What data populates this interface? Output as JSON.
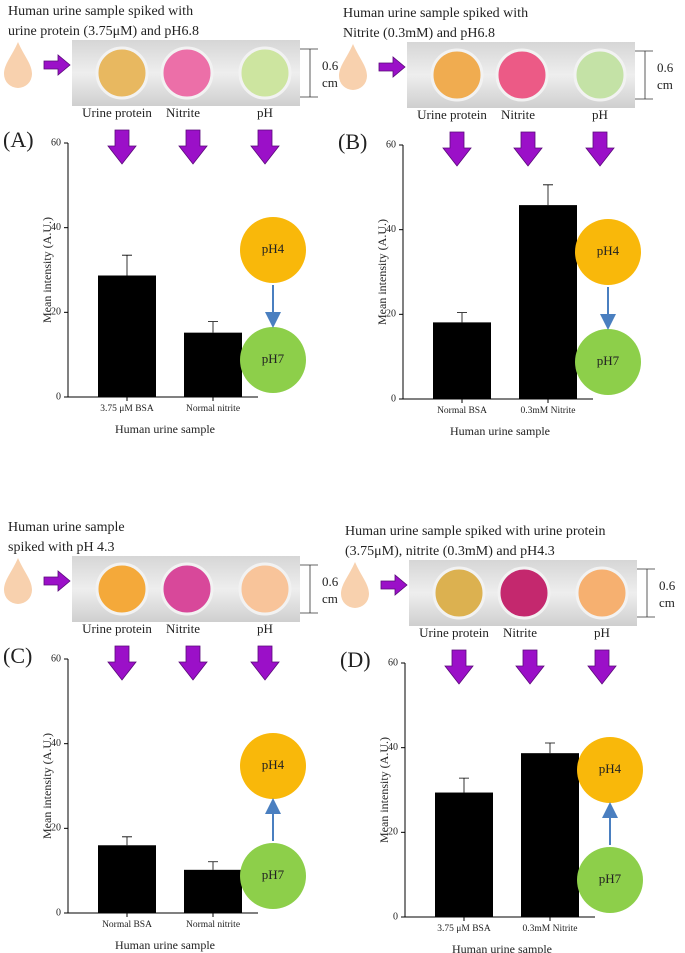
{
  "chart_data": [
    {
      "type": "bar",
      "panel_label": "(A)",
      "title": [
        "Human urine sample spiked with",
        "urine protein  (3.75μM) and pH6.8"
      ],
      "strip_labels": [
        "Urine protein",
        "Nitrite",
        "pH"
      ],
      "spot_colors": [
        "#e8b860",
        "#ec6fa8",
        "#cde5a0"
      ],
      "scale_label": [
        "0.6",
        "cm"
      ],
      "y_label": "Mean intensity (A.U.)",
      "x_label": "Human urine sample",
      "categories": [
        "3.75 μM BSA",
        "Normal nitrite"
      ],
      "values": [
        28.7,
        15.2
      ],
      "errors": [
        4.8,
        2.6
      ],
      "color": "#000000",
      "ylim": [
        0,
        60
      ],
      "yticks": [
        0,
        20,
        40,
        60
      ],
      "ph_labels": [
        "pH4",
        "pH7"
      ],
      "ph_arrow": "down"
    },
    {
      "type": "bar",
      "panel_label": "(B)",
      "title": [
        "Human urine sample spiked with",
        "Nitrite (0.3mM) and pH6.8"
      ],
      "strip_labels": [
        "Urine protein",
        "Nitrite",
        "pH"
      ],
      "spot_colors": [
        "#f0ac50",
        "#ec5a86",
        "#c4e2a6"
      ],
      "scale_label": [
        "0.6",
        "cm"
      ],
      "y_label": "Mean intensity (A.U.)",
      "x_label": "Human urine sample",
      "categories": [
        "Normal BSA",
        "0.3mM Nitrite"
      ],
      "values": [
        18.1,
        45.8
      ],
      "errors": [
        2.3,
        4.8
      ],
      "color": "#000000",
      "ylim": [
        0,
        60
      ],
      "yticks": [
        0,
        20,
        40,
        60
      ],
      "ph_labels": [
        "pH4",
        "pH7"
      ],
      "ph_arrow": "down"
    },
    {
      "type": "bar",
      "panel_label": "(C)",
      "title": [
        "Human urine sample",
        "spiked with pH 4.3"
      ],
      "strip_labels": [
        "Urine protein",
        "Nitrite",
        "pH"
      ],
      "spot_colors": [
        "#f4a93a",
        "#d8489a",
        "#f8c49a"
      ],
      "scale_label": [
        "0.6",
        "cm"
      ],
      "y_label": "Mean intensity (A.U.)",
      "x_label": "Human urine sample",
      "categories": [
        "Normal BSA",
        "Normal nitrite"
      ],
      "values": [
        16,
        10.2
      ],
      "errors": [
        2,
        1.9
      ],
      "color": "#000000",
      "ylim": [
        0,
        60
      ],
      "yticks": [
        0,
        20,
        40,
        60
      ],
      "ph_labels": [
        "pH4",
        "pH7"
      ],
      "ph_arrow": "up"
    },
    {
      "type": "bar",
      "panel_label": "(D)",
      "title": [
        "Human urine sample spiked with urine protein",
        "(3.75μM), nitrite (0.3mM) and pH4.3"
      ],
      "strip_labels": [
        "Urine protein",
        "Nitrite",
        "pH"
      ],
      "spot_colors": [
        "#dcb150",
        "#c4286e",
        "#f6b070"
      ],
      "scale_label": [
        "0.6",
        "cm"
      ],
      "y_label": "Mean intensity (A.U.)",
      "x_label": "Human urine sample",
      "categories": [
        "3.75 μM BSA",
        "0.3mM Nitrite"
      ],
      "values": [
        29.4,
        38.7
      ],
      "errors": [
        3.4,
        2.4
      ],
      "color": "#000000",
      "ylim": [
        0,
        60
      ],
      "yticks": [
        0,
        20,
        40,
        60
      ],
      "ph_labels": [
        "pH4",
        "pH7"
      ],
      "ph_arrow": "up"
    }
  ]
}
